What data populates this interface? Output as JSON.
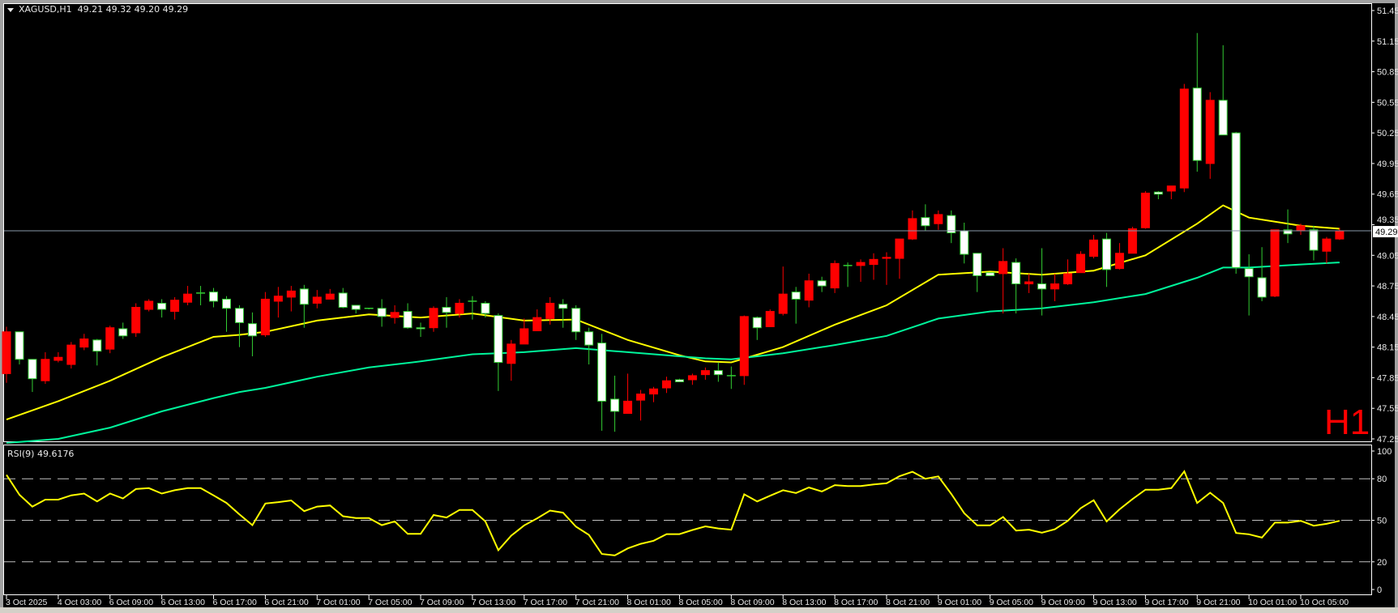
{
  "header": {
    "symbol": "XAGUSD,H1",
    "ohlc": "49.21 49.32 49.20 49.29"
  },
  "timeframe_badge": "H1",
  "rsi_label": "RSI(9) 49.6176",
  "colors": {
    "background": "#000000",
    "bull": "#ff0000",
    "bear_fill": "#ffffff",
    "bear_border": "#32cd32",
    "ma_fast": "#ffff00",
    "ma_slow": "#00f59b",
    "rsi": "#ffff00",
    "levels": "#c0c0c0",
    "axis_text": "#e8e8e8"
  },
  "chart_data": [
    {
      "type": "candlestick",
      "symbol": "XAGUSD",
      "timeframe": "H1",
      "ylim": [
        47.25,
        51.45
      ],
      "y_ticks": [
        "51.45",
        "51.15",
        "50.85",
        "50.55",
        "50.25",
        "49.95",
        "49.65",
        "49.35",
        "49.05",
        "48.75",
        "48.45",
        "48.15",
        "47.85",
        "47.55",
        "47.25"
      ],
      "current_price": "49.29",
      "x_ticks": [
        "3 Oct 2025",
        "4 Oct 03:00",
        "6 Oct 09:00",
        "6 Oct 13:00",
        "6 Oct 17:00",
        "6 Oct 21:00",
        "7 Oct 01:00",
        "7 Oct 05:00",
        "7 Oct 09:00",
        "7 Oct 13:00",
        "7 Oct 17:00",
        "7 Oct 21:00",
        "8 Oct 01:00",
        "8 Oct 05:00",
        "8 Oct 09:00",
        "8 Oct 13:00",
        "8 Oct 17:00",
        "8 Oct 21:00",
        "9 Oct 01:00",
        "9 Oct 05:00",
        "9 Oct 09:00",
        "9 Oct 13:00",
        "9 Oct 17:00",
        "9 Oct 21:00",
        "10 Oct 01:00",
        "10 Oct 05:00"
      ],
      "x_tick_every_bars": 4,
      "candle_fields": [
        "open",
        "high",
        "low",
        "close"
      ],
      "candles": [
        [
          47.89,
          48.35,
          47.8,
          48.3
        ],
        [
          48.3,
          48.3,
          47.98,
          48.03
        ],
        [
          48.03,
          48.03,
          47.71,
          47.84
        ],
        [
          47.82,
          48.1,
          47.79,
          48.03
        ],
        [
          48.02,
          48.1,
          48.0,
          48.05
        ],
        [
          47.98,
          48.2,
          47.94,
          48.17
        ],
        [
          48.15,
          48.28,
          48.12,
          48.23
        ],
        [
          48.22,
          48.23,
          47.97,
          48.11
        ],
        [
          48.13,
          48.36,
          48.09,
          48.34
        ],
        [
          48.33,
          48.39,
          48.23,
          48.26
        ],
        [
          48.29,
          48.58,
          48.25,
          48.54
        ],
        [
          48.52,
          48.62,
          48.5,
          48.6
        ],
        [
          48.58,
          48.62,
          48.44,
          48.52
        ],
        [
          48.5,
          48.64,
          48.42,
          48.61
        ],
        [
          48.59,
          48.75,
          48.56,
          48.67
        ],
        [
          48.68,
          48.75,
          48.56,
          48.68
        ],
        [
          48.69,
          48.73,
          48.54,
          48.6
        ],
        [
          48.62,
          48.65,
          48.3,
          48.53
        ],
        [
          48.53,
          48.56,
          48.15,
          48.39
        ],
        [
          48.38,
          48.49,
          48.06,
          48.26
        ],
        [
          48.27,
          48.69,
          48.25,
          48.62
        ],
        [
          48.6,
          48.74,
          48.44,
          48.65
        ],
        [
          48.64,
          48.75,
          48.5,
          48.7
        ],
        [
          48.72,
          48.76,
          48.34,
          48.57
        ],
        [
          48.58,
          48.71,
          48.53,
          48.64
        ],
        [
          48.62,
          48.72,
          48.62,
          48.67
        ],
        [
          48.68,
          48.73,
          48.53,
          48.54
        ],
        [
          48.56,
          48.56,
          48.48,
          48.52
        ],
        [
          48.53,
          48.53,
          48.52,
          48.53
        ],
        [
          48.53,
          48.62,
          48.35,
          48.45
        ],
        [
          48.44,
          48.56,
          48.38,
          48.49
        ],
        [
          48.5,
          48.58,
          48.33,
          48.34
        ],
        [
          48.34,
          48.39,
          48.25,
          48.33
        ],
        [
          48.34,
          48.55,
          48.3,
          48.53
        ],
        [
          48.54,
          48.64,
          48.34,
          48.49
        ],
        [
          48.48,
          48.62,
          48.44,
          48.58
        ],
        [
          48.6,
          48.65,
          48.42,
          48.6
        ],
        [
          48.58,
          48.6,
          48.44,
          48.48
        ],
        [
          48.46,
          48.48,
          47.72,
          48.0
        ],
        [
          47.99,
          48.22,
          47.82,
          48.18
        ],
        [
          48.18,
          48.43,
          48.18,
          48.33
        ],
        [
          48.31,
          48.52,
          48.31,
          48.44
        ],
        [
          48.43,
          48.64,
          48.37,
          48.58
        ],
        [
          48.57,
          48.62,
          48.34,
          48.53
        ],
        [
          48.53,
          48.56,
          48.22,
          48.3
        ],
        [
          48.3,
          48.34,
          47.98,
          48.17
        ],
        [
          48.19,
          48.28,
          47.33,
          47.62
        ],
        [
          47.64,
          47.87,
          47.32,
          47.52
        ],
        [
          47.5,
          47.89,
          47.5,
          47.62
        ],
        [
          47.63,
          47.73,
          47.43,
          47.69
        ],
        [
          47.69,
          47.76,
          47.61,
          47.74
        ],
        [
          47.75,
          47.86,
          47.7,
          47.82
        ],
        [
          47.83,
          47.84,
          47.81,
          47.81
        ],
        [
          47.83,
          47.89,
          47.78,
          47.87
        ],
        [
          47.88,
          47.95,
          47.83,
          47.92
        ],
        [
          47.92,
          48.0,
          47.81,
          47.88
        ],
        [
          47.87,
          47.96,
          47.74,
          47.87
        ],
        [
          47.87,
          48.46,
          47.78,
          48.45
        ],
        [
          48.44,
          48.45,
          48.22,
          48.34
        ],
        [
          48.35,
          48.52,
          48.35,
          48.5
        ],
        [
          48.48,
          48.94,
          48.46,
          48.67
        ],
        [
          48.69,
          48.74,
          48.38,
          48.62
        ],
        [
          48.61,
          48.87,
          48.54,
          48.8
        ],
        [
          48.8,
          48.84,
          48.69,
          48.75
        ],
        [
          48.73,
          49.0,
          48.68,
          48.97
        ],
        [
          48.95,
          48.98,
          48.74,
          48.95
        ],
        [
          48.95,
          49.01,
          48.79,
          48.98
        ],
        [
          48.96,
          49.07,
          48.81,
          49.01
        ],
        [
          49.02,
          49.08,
          48.76,
          49.03
        ],
        [
          49.02,
          49.21,
          48.82,
          49.21
        ],
        [
          49.21,
          49.49,
          49.2,
          49.41
        ],
        [
          49.42,
          49.55,
          49.29,
          49.34
        ],
        [
          49.36,
          49.49,
          49.3,
          49.45
        ],
        [
          49.44,
          49.49,
          49.17,
          49.27
        ],
        [
          49.29,
          49.37,
          48.97,
          49.06
        ],
        [
          49.07,
          49.07,
          48.69,
          48.85
        ],
        [
          48.88,
          48.88,
          48.85,
          48.85
        ],
        [
          48.87,
          49.12,
          48.48,
          48.99
        ],
        [
          48.98,
          49.02,
          48.48,
          48.77
        ],
        [
          48.77,
          48.87,
          48.68,
          48.79
        ],
        [
          48.77,
          49.12,
          48.46,
          48.72
        ],
        [
          48.72,
          48.87,
          48.6,
          48.77
        ],
        [
          48.77,
          49.01,
          48.76,
          48.87
        ],
        [
          48.88,
          49.09,
          48.88,
          49.06
        ],
        [
          49.04,
          49.25,
          49.02,
          49.2
        ],
        [
          49.21,
          49.27,
          48.74,
          48.91
        ],
        [
          48.92,
          49.17,
          48.91,
          49.07
        ],
        [
          49.07,
          49.33,
          49.07,
          49.31
        ],
        [
          49.32,
          49.68,
          49.31,
          49.66
        ],
        [
          49.67,
          49.68,
          49.6,
          49.65
        ],
        [
          49.68,
          49.73,
          49.6,
          49.73
        ],
        [
          49.71,
          50.73,
          49.67,
          50.68
        ],
        [
          50.69,
          51.23,
          49.87,
          49.98
        ],
        [
          49.95,
          50.65,
          49.8,
          50.57
        ],
        [
          50.57,
          51.11,
          50.23,
          50.23
        ],
        [
          50.25,
          50.26,
          48.87,
          48.93
        ],
        [
          48.92,
          49.06,
          48.46,
          48.84
        ],
        [
          48.83,
          49.13,
          48.6,
          48.64
        ],
        [
          48.65,
          49.3,
          48.64,
          49.3
        ],
        [
          49.3,
          49.5,
          49.17,
          49.26
        ],
        [
          49.29,
          49.36,
          49.25,
          49.34
        ],
        [
          49.3,
          49.34,
          49.0,
          49.1
        ],
        [
          49.09,
          49.23,
          48.97,
          49.21
        ],
        [
          49.21,
          49.32,
          49.2,
          49.29
        ]
      ],
      "moving_averages": [
        {
          "color": "#ffff00",
          "points": [
            [
              0,
              47.44
            ],
            [
              4,
              47.62
            ],
            [
              8,
              47.82
            ],
            [
              12,
              48.05
            ],
            [
              16,
              48.25
            ],
            [
              18,
              48.27
            ],
            [
              20,
              48.3
            ],
            [
              24,
              48.41
            ],
            [
              28,
              48.47
            ],
            [
              32,
              48.44
            ],
            [
              36,
              48.48
            ],
            [
              40,
              48.41
            ],
            [
              44,
              48.42
            ],
            [
              48,
              48.22
            ],
            [
              52,
              48.07
            ],
            [
              54,
              48.01
            ],
            [
              56,
              48.0
            ],
            [
              60,
              48.15
            ],
            [
              64,
              48.37
            ],
            [
              68,
              48.56
            ],
            [
              72,
              48.86
            ],
            [
              76,
              48.89
            ],
            [
              80,
              48.86
            ],
            [
              84,
              48.9
            ],
            [
              88,
              49.05
            ],
            [
              92,
              49.36
            ],
            [
              94,
              49.54
            ],
            [
              96,
              49.42
            ],
            [
              100,
              49.34
            ],
            [
              103,
              49.31
            ]
          ]
        },
        {
          "color": "#00f59b",
          "points": [
            [
              0,
              47.21
            ],
            [
              4,
              47.25
            ],
            [
              8,
              47.36
            ],
            [
              12,
              47.52
            ],
            [
              16,
              47.65
            ],
            [
              18,
              47.71
            ],
            [
              20,
              47.75
            ],
            [
              24,
              47.86
            ],
            [
              28,
              47.95
            ],
            [
              32,
              48.01
            ],
            [
              36,
              48.08
            ],
            [
              40,
              48.1
            ],
            [
              44,
              48.14
            ],
            [
              48,
              48.1
            ],
            [
              52,
              48.06
            ],
            [
              54,
              48.04
            ],
            [
              56,
              48.03
            ],
            [
              60,
              48.09
            ],
            [
              64,
              48.17
            ],
            [
              68,
              48.26
            ],
            [
              72,
              48.43
            ],
            [
              76,
              48.5
            ],
            [
              80,
              48.53
            ],
            [
              84,
              48.59
            ],
            [
              88,
              48.67
            ],
            [
              92,
              48.83
            ],
            [
              94,
              48.93
            ],
            [
              96,
              48.93
            ],
            [
              100,
              48.96
            ],
            [
              103,
              48.98
            ]
          ]
        }
      ]
    },
    {
      "type": "line",
      "indicator": "RSI(9)",
      "ylim": [
        0,
        100
      ],
      "y_ticks": [
        "100",
        "80",
        "50",
        "20",
        "0"
      ],
      "levels": [
        80,
        50,
        20
      ],
      "values": [
        82.8,
        68.4,
        59.9,
        64.9,
        64.9,
        68.0,
        69.3,
        63.6,
        69.3,
        65.8,
        72.6,
        73.2,
        69.3,
        71.7,
        73.2,
        73.2,
        68.0,
        62.5,
        54.2,
        46.5,
        62.1,
        63.1,
        64.3,
        56.6,
        59.9,
        60.7,
        52.9,
        51.6,
        51.6,
        46.5,
        49.2,
        40.2,
        40.2,
        53.8,
        52.0,
        57.5,
        57.5,
        49.2,
        28.4,
        38.9,
        46.3,
        51.4,
        57.0,
        55.5,
        45.4,
        39.5,
        25.7,
        24.6,
        29.7,
        33.0,
        35.2,
        40.0,
        40.0,
        43.0,
        45.6,
        44.1,
        43.2,
        68.8,
        63.6,
        67.7,
        71.7,
        69.7,
        73.7,
        70.8,
        75.4,
        74.7,
        74.7,
        75.9,
        76.7,
        81.8,
        85.0,
        80.0,
        81.7,
        69.0,
        55.1,
        46.3,
        46.3,
        52.4,
        42.6,
        43.2,
        41.0,
        43.5,
        49.6,
        58.8,
        64.5,
        49.2,
        57.9,
        65.3,
        72.1,
        72.1,
        73.2,
        85.3,
        62.5,
        69.9,
        62.5,
        40.8,
        39.9,
        37.5,
        48.3,
        48.3,
        49.6,
        46.1,
        47.4,
        49.6176
      ]
    }
  ]
}
